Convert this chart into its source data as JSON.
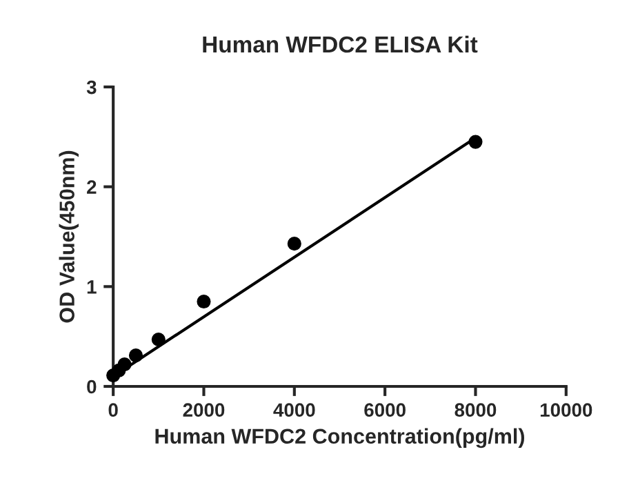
{
  "chart_data": {
    "type": "scatter",
    "title": "Human WFDC2 ELISA Kit",
    "xlabel": "Human WFDC2 Concentration(pg/ml)",
    "ylabel": "OD Value(450nm)",
    "series": [
      {
        "color": "#000000",
        "marker": "circle",
        "x": [
          0,
          125,
          250,
          500,
          1000,
          2000,
          4000,
          8000
        ],
        "values": [
          0.11,
          0.16,
          0.22,
          0.31,
          0.47,
          0.85,
          1.43,
          2.45
        ]
      },
      {
        "type": "line",
        "color": "#000000",
        "marker": "none",
        "line_style": "solid",
        "x": [
          0,
          8000
        ],
        "values": [
          0.1,
          2.49
        ]
      }
    ],
    "xlim": [
      0,
      10000
    ],
    "xticks": [
      0,
      2000,
      4000,
      6000,
      8000,
      10000
    ],
    "ylim": [
      0,
      3
    ],
    "yticks": [
      0,
      1,
      2,
      3
    ],
    "grid": false,
    "legend": false
  }
}
